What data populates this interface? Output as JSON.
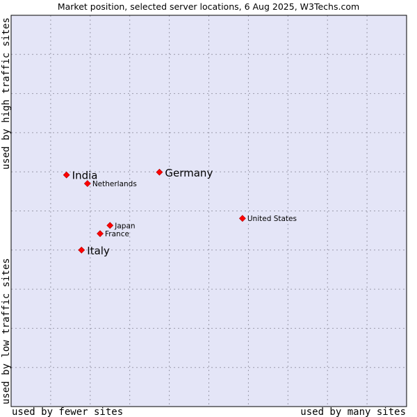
{
  "chart_data": {
    "type": "scatter",
    "title": "Market position, selected server locations, 6 Aug 2025, W3Techs.com",
    "xlabel_left": "used by fewer sites",
    "xlabel_right": "used by many sites",
    "ylabel_bottom": "used by low traffic sites",
    "ylabel_top": "used by high traffic sites",
    "xlim": [
      0,
      100
    ],
    "ylim": [
      0,
      100
    ],
    "grid": true,
    "colors": {
      "plot_bg": "#e4e5f7",
      "grid": "#9a9aaa",
      "marker": "#ff0000",
      "border": "#000000"
    },
    "points": [
      {
        "name": "India",
        "x": 14.0,
        "y": 59.2,
        "label_size": "large"
      },
      {
        "name": "Germany",
        "x": 37.5,
        "y": 59.9,
        "label_size": "large"
      },
      {
        "name": "Netherlands",
        "x": 19.3,
        "y": 57.0,
        "label_size": "small"
      },
      {
        "name": "United States",
        "x": 58.5,
        "y": 48.1,
        "label_size": "small"
      },
      {
        "name": "Japan",
        "x": 25.0,
        "y": 46.3,
        "label_size": "small"
      },
      {
        "name": "France",
        "x": 22.5,
        "y": 44.2,
        "label_size": "small"
      },
      {
        "name": "Italy",
        "x": 17.8,
        "y": 40.0,
        "label_size": "large"
      }
    ]
  }
}
